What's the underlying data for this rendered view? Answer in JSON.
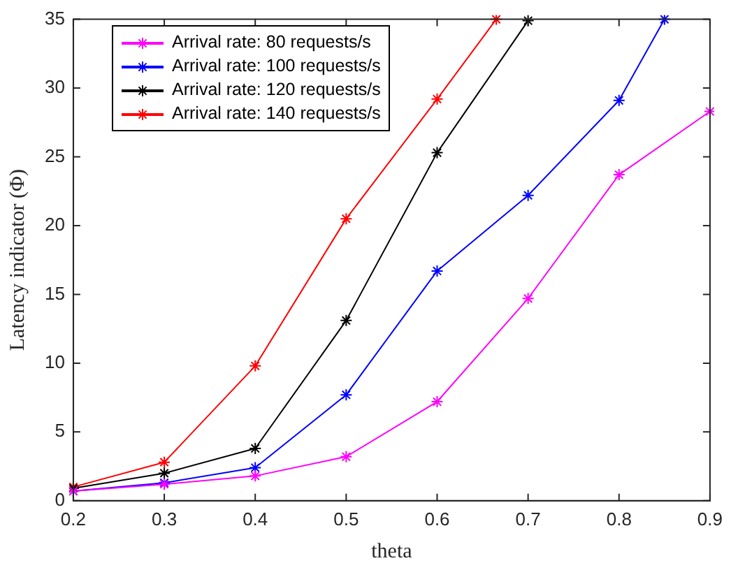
{
  "chart_data": {
    "type": "line",
    "xlabel": "theta",
    "ylabel": "Latency indicator (Φ)",
    "xlim": [
      0.2,
      0.9
    ],
    "xticks": [
      0.2,
      0.3,
      0.4,
      0.5,
      0.6,
      0.7,
      0.8,
      0.9
    ],
    "ylim": [
      0,
      35
    ],
    "yticks": [
      0,
      5,
      10,
      15,
      20,
      25,
      30,
      35
    ],
    "grid": false,
    "legend": "top left",
    "marker": "cross",
    "line_style": "solid",
    "series": [
      {
        "name": "Arrival rate: 80 requests/s",
        "color": "#ff00ff",
        "x": [
          0.2,
          0.3,
          0.4,
          0.5,
          0.6,
          0.7,
          0.8,
          0.9
        ],
        "values": [
          0.7,
          1.2,
          1.8,
          3.2,
          7.2,
          14.7,
          23.7,
          28.3
        ]
      },
      {
        "name": "Arrival rate: 100 requests/s",
        "color": "#0000ff",
        "x": [
          0.2,
          0.3,
          0.4,
          0.5,
          0.6,
          0.7,
          0.8,
          0.85
        ],
        "values": [
          0.7,
          1.3,
          2.4,
          7.7,
          16.7,
          22.2,
          29.1,
          35
        ]
      },
      {
        "name": "Arrival rate: 120 requests/s",
        "color": "#000000",
        "x": [
          0.2,
          0.3,
          0.4,
          0.5,
          0.6,
          0.7
        ],
        "values": [
          0.9,
          2.0,
          3.8,
          13.1,
          25.3,
          34.9
        ]
      },
      {
        "name": "Arrival rate: 140 requests/s",
        "color": "#ff0000",
        "x": [
          0.2,
          0.3,
          0.4,
          0.5,
          0.6,
          0.665
        ],
        "values": [
          1.0,
          2.8,
          9.8,
          20.5,
          29.2,
          35
        ]
      }
    ]
  }
}
